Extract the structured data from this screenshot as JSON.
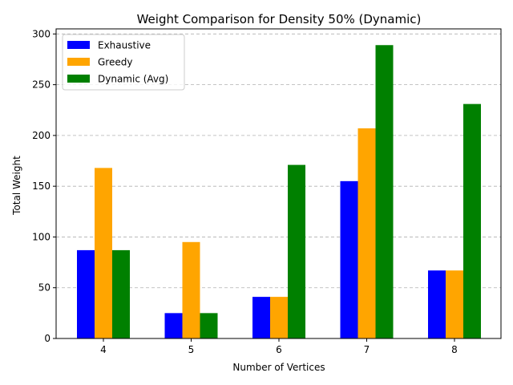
{
  "chart_data": {
    "type": "bar",
    "title": "Weight Comparison for Density 50% (Dynamic)",
    "xlabel": "Number of Vertices",
    "ylabel": "Total Weight",
    "categories": [
      "4",
      "5",
      "6",
      "7",
      "8"
    ],
    "ylim": [
      0,
      305
    ],
    "yticks": [
      0,
      50,
      100,
      150,
      200,
      250,
      300
    ],
    "grid": "y-dashed",
    "legend": "top-left",
    "series": [
      {
        "name": "Exhaustive",
        "color": "#0000ff",
        "values": [
          87,
          25,
          41,
          155,
          67
        ]
      },
      {
        "name": "Greedy",
        "color": "#ffa500",
        "values": [
          168,
          95,
          41,
          207,
          67
        ]
      },
      {
        "name": "Dynamic (Avg)",
        "color": "#008000",
        "values": [
          87,
          25,
          171,
          289,
          231
        ]
      }
    ]
  }
}
